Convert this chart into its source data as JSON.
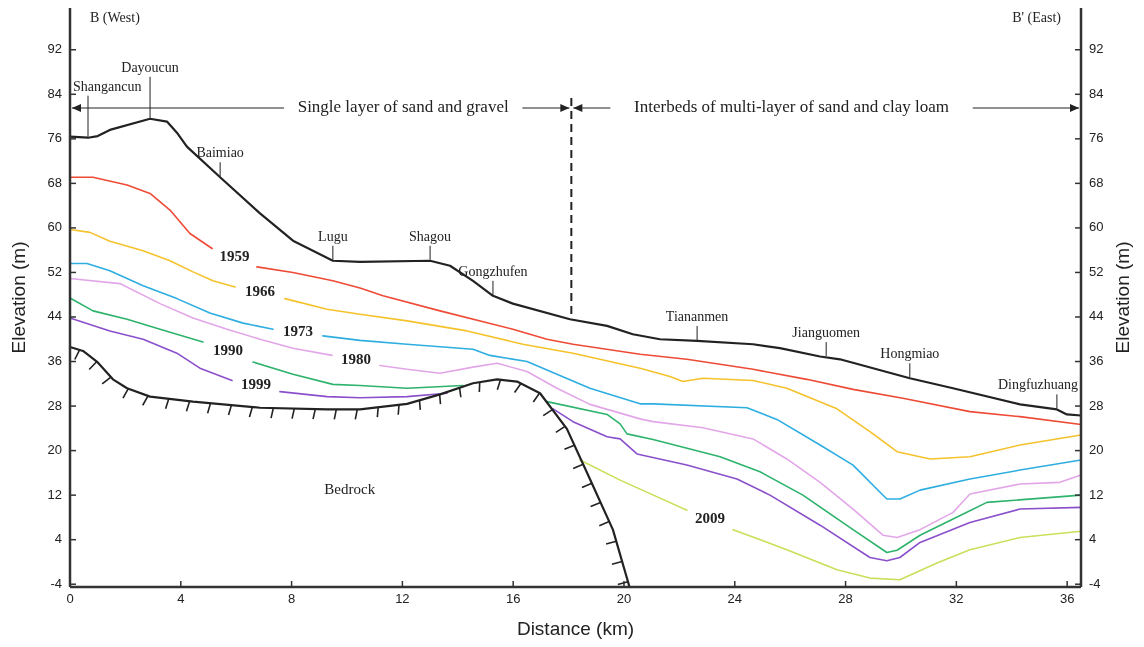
{
  "chart_data": {
    "type": "line",
    "xlabel": "Distance (km)",
    "ylabel": "Elevation (m)",
    "y2label": "Elevation (m)",
    "xlim": [
      0,
      36.5
    ],
    "xticks": [
      0,
      4,
      8,
      12,
      16,
      20,
      24,
      28,
      32,
      36
    ],
    "ylim": [
      -4.5,
      99.5
    ],
    "yticks": [
      -4,
      4,
      12,
      20,
      28,
      36,
      44,
      52,
      60,
      68,
      76,
      84,
      92
    ],
    "y2lim": [
      -4.5,
      99.5
    ],
    "y2ticks": [
      -4,
      4,
      12,
      20,
      28,
      36,
      44,
      52,
      60,
      68,
      76,
      84,
      92
    ],
    "grid": false,
    "legend": false,
    "series": [
      {
        "color": "#222222",
        "x": [
          0,
          0.65,
          1.0,
          1.44,
          2.89,
          3.5,
          3.86,
          4.22,
          5.42,
          6.86,
          8.05,
          9.49,
          10.47,
          13.0,
          13.72,
          14.55,
          15.27,
          15.99,
          18.05,
          19.39,
          20.32,
          21.3,
          22.64,
          24.66,
          25.63,
          27.08,
          27.8,
          30.32,
          31.88,
          34.3,
          35.63,
          35.99,
          36.5
        ],
        "values": [
          76.4,
          76.2,
          76.5,
          77.6,
          79.6,
          79.1,
          77.1,
          74.6,
          69.1,
          62.6,
          57.7,
          54.1,
          53.9,
          54.1,
          53.2,
          50.5,
          47.8,
          46.4,
          43.6,
          42.4,
          40.9,
          40.0,
          39.7,
          39.1,
          38.4,
          36.9,
          36.4,
          33.0,
          31.2,
          28.3,
          27.4,
          26.5,
          26.3
        ]
      },
      {
        "name": "1959",
        "color": "#ee4b36",
        "x": [
          0,
          0.83,
          2.06,
          2.89,
          3.61,
          4.33,
          5.13,
          6.0,
          6.75,
          8.05,
          9.49,
          10.47,
          11.3,
          13.36,
          15.99,
          17.22,
          18.16,
          20.58,
          22.27,
          24.66,
          26.6,
          28.27,
          30.07,
          32.49,
          34.3,
          36.5
        ],
        "values": [
          69.1,
          69.1,
          67.7,
          66.2,
          63.2,
          59.0,
          56.3,
          null,
          53.0,
          52.0,
          50.5,
          49.2,
          47.8,
          45.1,
          41.8,
          40.0,
          39.1,
          37.3,
          36.4,
          34.6,
          32.8,
          31.0,
          29.4,
          27.0,
          26.1,
          24.7
        ]
      },
      {
        "name": "1966",
        "color": "#f5c22c",
        "x": [
          0,
          0.72,
          1.44,
          2.64,
          3.61,
          4.44,
          5.16,
          5.96,
          6.9,
          7.76,
          9.28,
          10.47,
          12.17,
          14.33,
          16.35,
          18.16,
          20.58,
          21.66,
          22.13,
          22.85,
          24.66,
          25.88,
          27.69,
          28.88,
          29.86,
          31.05,
          32.49,
          34.3,
          36.5
        ],
        "values": [
          59.7,
          59.2,
          57.6,
          55.9,
          54.1,
          52.1,
          50.5,
          49.4,
          null,
          47.3,
          45.4,
          44.5,
          43.3,
          41.5,
          39.1,
          37.5,
          34.8,
          33.3,
          32.4,
          33.0,
          32.6,
          31.2,
          27.5,
          23.4,
          19.8,
          18.5,
          18.9,
          21.0,
          22.8
        ]
      },
      {
        "name": "1973",
        "color": "#2eaee0",
        "x": [
          0,
          0.61,
          1.44,
          2.64,
          3.86,
          5.05,
          6.25,
          7.33,
          8.2,
          9.13,
          10.47,
          12.17,
          14.55,
          15.16,
          16.5,
          17.58,
          18.77,
          20.58,
          21.05,
          24.44,
          25.52,
          27.08,
          28.27,
          29.49,
          29.96,
          30.69,
          32.49,
          34.3,
          36.5
        ],
        "values": [
          53.6,
          53.6,
          52.3,
          49.6,
          47.3,
          44.7,
          42.9,
          41.8,
          null,
          40.6,
          39.8,
          39.1,
          38.2,
          37.1,
          36.0,
          33.7,
          31.2,
          28.4,
          28.4,
          27.7,
          25.6,
          21.0,
          17.4,
          11.3,
          11.3,
          12.9,
          14.9,
          16.5,
          18.3
        ]
      },
      {
        "name": "1980",
        "color": "#e2a6e8",
        "x": [
          0,
          1.8,
          3.25,
          4.44,
          5.67,
          6.86,
          8.05,
          9.46,
          10.6,
          11.19,
          12.17,
          13.36,
          14.55,
          15.42,
          16.5,
          17.58,
          18.77,
          20.58,
          21.05,
          22.85,
          24.66,
          25.88,
          27.08,
          28.27,
          29.35,
          29.86,
          30.69,
          31.88,
          32.49,
          34.3,
          35.74,
          36.5
        ],
        "values": [
          50.9,
          50.0,
          46.4,
          43.8,
          41.8,
          40.0,
          38.4,
          37.1,
          null,
          35.3,
          34.6,
          33.9,
          35.0,
          35.7,
          34.2,
          31.2,
          28.3,
          25.7,
          25.2,
          24.1,
          22.1,
          18.5,
          14.3,
          9.5,
          4.8,
          4.4,
          5.8,
          8.9,
          12.2,
          14.0,
          14.3,
          15.6
        ]
      },
      {
        "name": "1990",
        "color": "#2db36b",
        "x": [
          0,
          0.83,
          2.06,
          3.25,
          4.8,
          6.0,
          6.61,
          8.05,
          9.49,
          10.47,
          12.17,
          14.19,
          16.5,
          17.22,
          19.39,
          19.86,
          20.11,
          21.05,
          23.47,
          24.91,
          26.46,
          28.27,
          29.49,
          29.86,
          30.69,
          31.88,
          33.1,
          36.5
        ],
        "values": [
          47.4,
          45.1,
          43.6,
          41.8,
          39.5,
          null,
          35.9,
          33.7,
          31.9,
          31.7,
          31.2,
          31.7,
          null,
          28.8,
          26.5,
          24.8,
          23.0,
          22.0,
          18.9,
          16.2,
          12.0,
          5.8,
          1.7,
          2.1,
          4.8,
          7.7,
          10.7,
          12.0
        ]
      },
      {
        "name": "1999",
        "color": "#8a4fcb",
        "x": [
          0,
          1.44,
          2.64,
          3.86,
          4.69,
          5.85,
          6.8,
          7.58,
          9.28,
          10.47,
          12.17,
          13.61,
          17.0,
          17.44,
          18.16,
          19.39,
          19.86,
          20.47,
          22.27,
          24.08,
          25.27,
          27.08,
          28.88,
          29.49,
          29.96,
          30.69,
          32.49,
          34.3,
          36.5
        ],
        "values": [
          43.8,
          41.5,
          40.0,
          37.5,
          34.8,
          32.6,
          null,
          30.6,
          29.7,
          29.5,
          29.7,
          30.3,
          null,
          27.5,
          25.2,
          22.5,
          22.1,
          19.4,
          17.4,
          14.9,
          12.0,
          6.6,
          0.8,
          0.2,
          0.8,
          3.5,
          7.1,
          9.5,
          9.8
        ]
      },
      {
        "name": "2009",
        "color": "#c8e05a",
        "x": [
          18.41,
          19.86,
          22.27,
          23.2,
          23.94,
          25.88,
          27.69,
          28.88,
          29.96,
          31.3,
          32.49,
          34.3,
          36.5
        ],
        "values": [
          18.3,
          14.7,
          9.3,
          null,
          5.8,
          2.2,
          -1.4,
          -2.9,
          -3.2,
          -0.2,
          2.2,
          4.4,
          5.5
        ]
      },
      {
        "color": "#222222",
        "x": [
          0,
          0.47,
          0.97,
          1.55,
          2.06,
          2.89,
          4.44,
          6.86,
          9.28,
          10.47,
          12.17,
          13.36,
          14.55,
          15.42,
          16.14,
          16.97,
          17.94,
          18.77,
          19.6,
          20.2
        ],
        "values": [
          38.6,
          37.9,
          36.0,
          32.8,
          31.2,
          29.7,
          28.8,
          27.7,
          27.4,
          27.4,
          28.4,
          30.1,
          32.1,
          32.8,
          32.4,
          30.3,
          23.9,
          14.9,
          5.8,
          -4.5
        ]
      }
    ],
    "ref_lines": [
      {
        "axis": "x",
        "value": 18.1,
        "line_style": "dashed",
        "color": "#222222"
      }
    ],
    "annotations": [
      "B  (West)",
      "B'  (East)",
      "Single layer of sand and gravel",
      "Interbeds  of  multi-layer of sand and clay loam",
      "Bedrock",
      {
        "text": "Shangancun",
        "x": 0.65,
        "y": 76.2
      },
      {
        "text": "Dayoucun",
        "x": 2.89,
        "y": 79.6
      },
      {
        "text": "Baimiao",
        "x": 5.42,
        "y": 69.1
      },
      {
        "text": "Lugu",
        "x": 9.49,
        "y": 54.1
      },
      {
        "text": "Shagou",
        "x": 13.0,
        "y": 54.1
      },
      {
        "text": "Gongzhufen",
        "x": 15.27,
        "y": 47.8
      },
      {
        "text": "Tiananmen",
        "x": 22.64,
        "y": 39.7
      },
      {
        "text": "Jianguomen",
        "x": 27.3,
        "y": 36.8
      },
      {
        "text": "Hongmiao",
        "x": 30.32,
        "y": 33.0
      },
      {
        "text": "Dingfuzhuang",
        "x": 35.63,
        "y": 27.4
      }
    ]
  }
}
